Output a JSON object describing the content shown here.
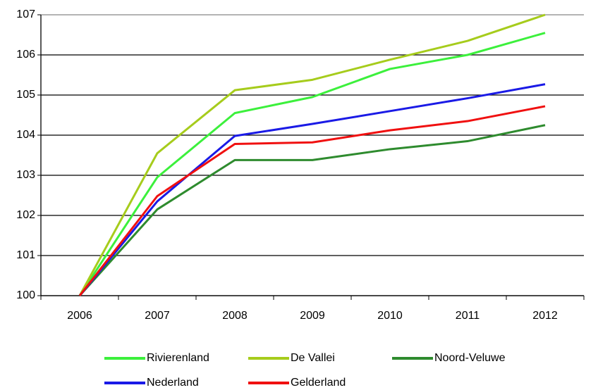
{
  "chart_data": {
    "type": "line",
    "categories": [
      "2006",
      "2007",
      "2008",
      "2009",
      "2010",
      "2011",
      "2012"
    ],
    "series": [
      {
        "name": "Rivierenland",
        "color": "#3cf03c",
        "values": [
          100,
          102.95,
          104.55,
          104.95,
          105.65,
          106.0,
          106.55
        ]
      },
      {
        "name": "De Vallei",
        "color": "#a6cc1c",
        "values": [
          100,
          103.55,
          105.12,
          105.38,
          105.88,
          106.35,
          107.0
        ]
      },
      {
        "name": "Noord-Veluwe",
        "color": "#2e8b2e",
        "values": [
          100,
          102.15,
          103.38,
          103.38,
          103.65,
          103.85,
          104.25
        ]
      },
      {
        "name": "Nederland",
        "color": "#1a1ae6",
        "values": [
          100,
          102.35,
          103.98,
          104.28,
          104.6,
          104.92,
          105.27
        ]
      },
      {
        "name": "Gelderland",
        "color": "#f01010",
        "values": [
          100,
          102.48,
          103.78,
          103.82,
          104.12,
          104.35,
          104.72
        ]
      }
    ],
    "ylim": [
      100,
      107
    ],
    "yticks": [
      100,
      101,
      102,
      103,
      104,
      105,
      106,
      107
    ],
    "grid": true
  }
}
